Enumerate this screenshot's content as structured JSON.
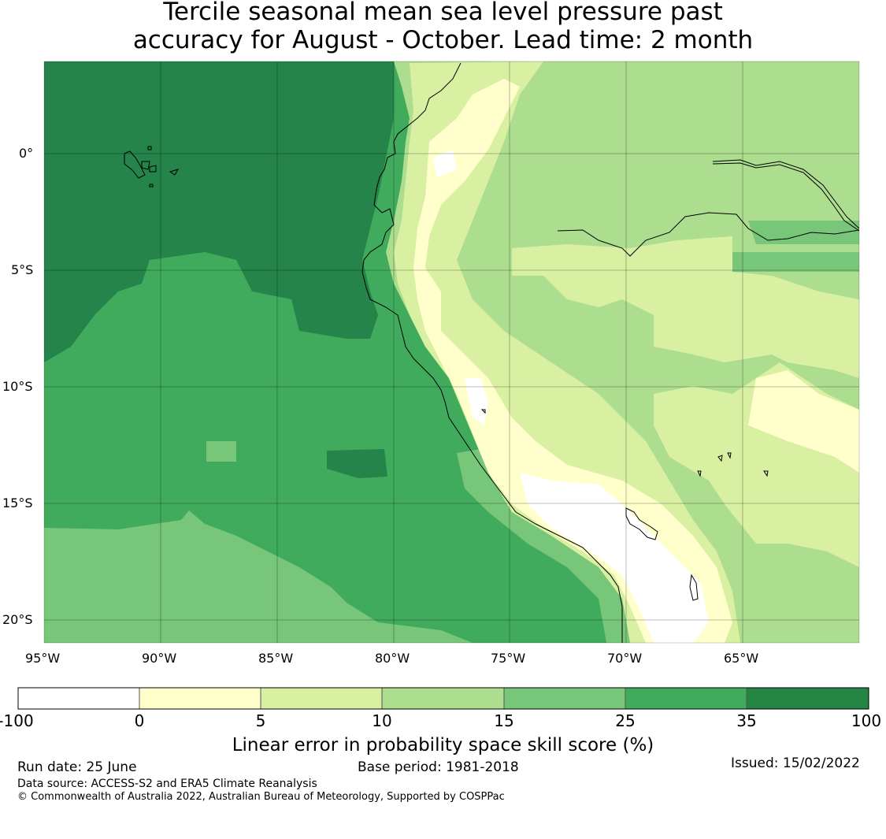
{
  "title_line1": "Tercile seasonal mean sea level pressure past",
  "title_line2": "accuracy for August - October. Lead time: 2 month",
  "map": {
    "lon_labels": [
      "95°W",
      "90°W",
      "85°W",
      "80°W",
      "75°W",
      "70°W",
      "65°W"
    ],
    "lat_labels": [
      "0°",
      "5°S",
      "10°S",
      "15°S",
      "20°S"
    ],
    "features": [
      "Galapagos Islands",
      "Ecuador–Peru coastline",
      "Amazon/Marañón river",
      "Lake Titicaca"
    ],
    "colors": {
      "ocean_far": "#24844a",
      "ocean_mid": "#41ab5d",
      "ocean_south": "#78c679",
      "land_high": "#addd8e",
      "land_mid": "#d9f0a3",
      "land_low": "#ffffcc",
      "andes_min": "#ffffff"
    }
  },
  "colorbar": {
    "bins": [
      {
        "range": "-100 to 0",
        "color": "#ffffff"
      },
      {
        "range": "0 to 5",
        "color": "#ffffcc"
      },
      {
        "range": "5 to 10",
        "color": "#d9f0a3"
      },
      {
        "range": "10 to 15",
        "color": "#addd8e"
      },
      {
        "range": "15 to 25",
        "color": "#78c679"
      },
      {
        "range": "25 to 35",
        "color": "#41ab5d"
      },
      {
        "range": "35 to 100",
        "color": "#238443"
      }
    ],
    "ticks": [
      "-100",
      "0",
      "5",
      "10",
      "15",
      "25",
      "35",
      "100"
    ],
    "label": "Linear error in probability space skill score (%)"
  },
  "footer": {
    "run_date": "Run date: 25 June",
    "base_period": "Base period: 1981-2018",
    "issued": "Issued: 15/02/2022",
    "data_source": "Data source: ACCESS-S2 and ERA5 Climate Reanalysis",
    "copyright": "© Commonwealth of Australia 2022, Australian Bureau of Meteorology, Supported by COSPPac"
  }
}
